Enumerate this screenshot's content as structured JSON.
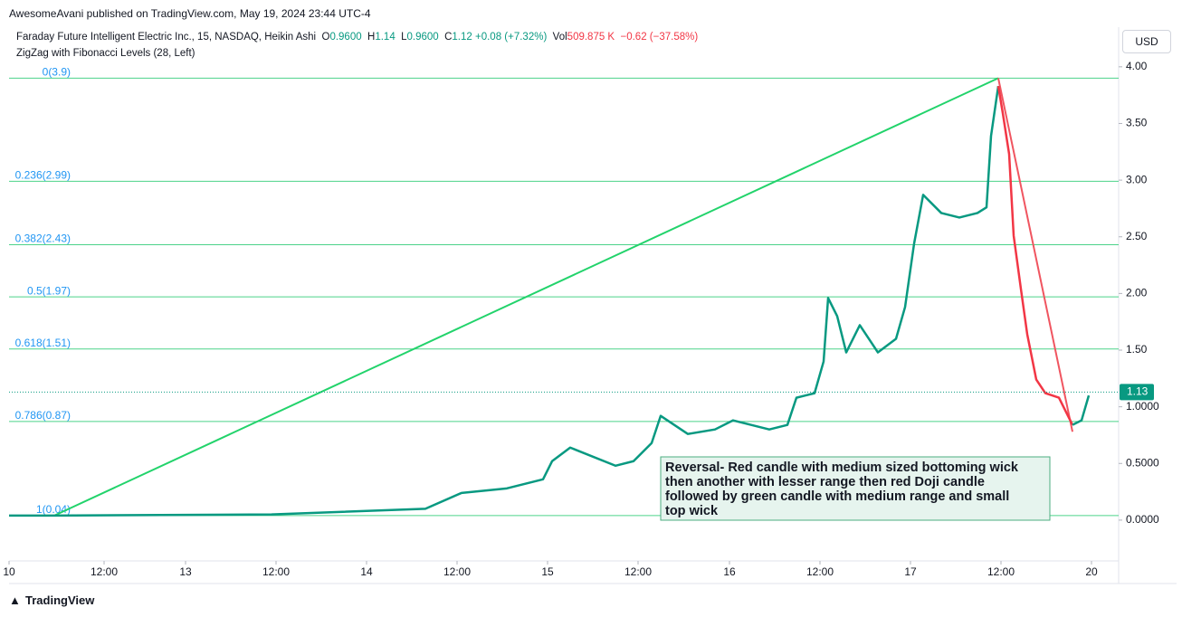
{
  "header": {
    "published": "AwesomeAvani published on TradingView.com, May 19, 2024 23:44 UTC-4",
    "symbol": "Faraday Future Intelligent Electric Inc., 15, NASDAQ, Heikin Ashi",
    "o_label": "O",
    "open": "0.9600",
    "h_label": "H",
    "high": "1.14",
    "l_label": "L",
    "low": "0.9600",
    "c_label": "C",
    "close": "1.12",
    "change": "+0.08 (+7.32%)",
    "vol_label": "Vol",
    "volume": "509.875 K",
    "vol_change": "−0.62 (−37.58%)",
    "indicator": "ZigZag with Fibonacci Levels (28, Left)",
    "currency": "USD"
  },
  "footer": {
    "brand": "TradingView"
  },
  "chart_data": {
    "type": "line",
    "xlim": [
      0,
      6.13
    ],
    "ylim": [
      -0.36,
      4.35
    ],
    "xticks": [
      {
        "value": 0,
        "label": "10"
      },
      {
        "value": 0.525,
        "label": "12:00"
      },
      {
        "value": 0.975,
        "label": "13"
      },
      {
        "value": 1.475,
        "label": "12:00"
      },
      {
        "value": 1.975,
        "label": "14"
      },
      {
        "value": 2.475,
        "label": "12:00"
      },
      {
        "value": 2.975,
        "label": "15"
      },
      {
        "value": 3.475,
        "label": "12:00"
      },
      {
        "value": 3.98,
        "label": "16"
      },
      {
        "value": 4.48,
        "label": "12:00"
      },
      {
        "value": 4.98,
        "label": "17"
      },
      {
        "value": 5.48,
        "label": "12:00"
      },
      {
        "value": 5.98,
        "label": "20"
      }
    ],
    "yticks": [
      {
        "value": 4,
        "label": "4.00"
      },
      {
        "value": 3.5,
        "label": "3.50"
      },
      {
        "value": 3,
        "label": "3.00"
      },
      {
        "value": 2.5,
        "label": "2.50"
      },
      {
        "value": 2,
        "label": "2.00"
      },
      {
        "value": 1.5,
        "label": "1.50"
      },
      {
        "value": 1,
        "label": "1.0000"
      },
      {
        "value": 0.5,
        "label": "0.5000"
      },
      {
        "value": 0,
        "label": "0.0000"
      }
    ],
    "series": [
      {
        "color": "#089981",
        "x": [
          0,
          0.25,
          1.45,
          2.3,
          2.5,
          2.75,
          2.95,
          3.0,
          3.1,
          3.35,
          3.45,
          3.55,
          3.6,
          3.75,
          3.9,
          4.0,
          4.2,
          4.3,
          4.35,
          4.45,
          4.5,
          4.525,
          4.575,
          4.625,
          4.7,
          4.8,
          4.9,
          4.95,
          5.0,
          5.05,
          5.15,
          5.25,
          5.35,
          5.4,
          5.425,
          5.465
        ],
        "values": [
          0.04,
          0.04,
          0.05,
          0.1,
          0.24,
          0.28,
          0.36,
          0.52,
          0.64,
          0.48,
          0.52,
          0.68,
          0.92,
          0.76,
          0.8,
          0.88,
          0.8,
          0.84,
          1.08,
          1.12,
          1.4,
          1.96,
          1.8,
          1.48,
          1.72,
          1.48,
          1.6,
          1.88,
          2.44,
          2.87,
          2.71,
          2.67,
          2.71,
          2.76,
          3.39,
          3.83
        ]
      },
      {
        "color": "#f23645",
        "x": [
          5.465,
          5.49,
          5.525,
          5.55,
          5.59,
          5.625,
          5.675,
          5.725,
          5.8,
          5.875
        ],
        "values": [
          3.83,
          3.59,
          3.23,
          2.51,
          2.04,
          1.64,
          1.24,
          1.12,
          1.08,
          0.84
        ]
      },
      {
        "color": "#089981",
        "x": [
          5.875,
          5.925,
          5.965
        ],
        "values": [
          0.84,
          0.88,
          1.1
        ]
      }
    ],
    "zigzag": [
      {
        "color": "#22d36b",
        "x": [
          0.25,
          5.465
        ],
        "values": [
          0.04,
          3.9
        ]
      },
      {
        "color": "#f05560",
        "x": [
          5.465,
          5.875
        ],
        "values": [
          3.9,
          0.78
        ]
      }
    ],
    "fib_levels": [
      {
        "value": 3.9,
        "label": "0(3.9)"
      },
      {
        "value": 2.99,
        "label": "0.236(2.99)"
      },
      {
        "value": 2.43,
        "label": "0.382(2.43)"
      },
      {
        "value": 1.97,
        "label": "0.5(1.97)"
      },
      {
        "value": 1.51,
        "label": "0.618(1.51)"
      },
      {
        "value": 0.87,
        "label": "0.786(0.87)"
      },
      {
        "value": 0.04,
        "label": "1(0.04)"
      }
    ],
    "fib_color": "#4cd38a",
    "last_price": {
      "value": 1.13,
      "label": "1.13"
    },
    "annotation": {
      "lines": [
        "Reversal- Red candle with medium sized bottoming wick",
        "then another with lesser range then red Doji candle",
        "followed  by green candle with medium range and small",
        "top wick"
      ]
    }
  }
}
